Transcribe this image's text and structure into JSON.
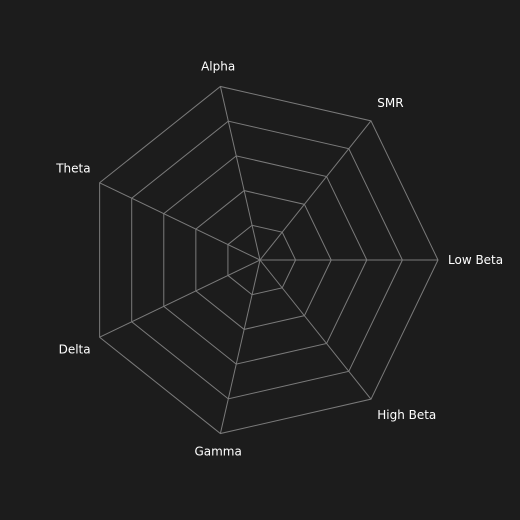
{
  "chart_data": {
    "type": "radar",
    "axes": [
      "Low Beta",
      "High Beta",
      "Gamma",
      "Delta",
      "Theta",
      "Alpha",
      "SMR"
    ],
    "rings": 5,
    "series": [],
    "grid": true,
    "colors": {
      "background": "#1c1c1c",
      "grid": "#7a7a7a",
      "label": "#ffffff"
    }
  }
}
